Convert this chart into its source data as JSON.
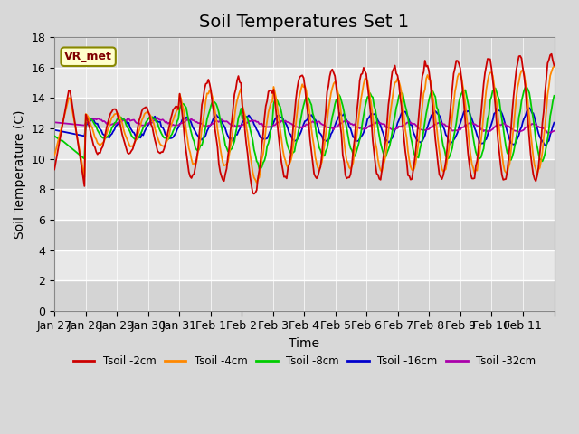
{
  "title": "Soil Temperatures Set 1",
  "xlabel": "Time",
  "ylabel": "Soil Temperature (C)",
  "ylim": [
    0,
    18
  ],
  "yticks": [
    0,
    2,
    4,
    6,
    8,
    10,
    12,
    14,
    16,
    18
  ],
  "x_tick_positions": [
    0,
    1,
    2,
    3,
    4,
    5,
    6,
    7,
    8,
    9,
    10,
    11,
    12,
    13,
    14,
    15,
    16
  ],
  "x_labels": [
    "Jan 27",
    "Jan 28",
    "Jan 29",
    "Jan 30",
    "Jan 31",
    "Feb 1",
    "Feb 2",
    "Feb 3",
    "Feb 4",
    "Feb 5",
    "Feb 6",
    "Feb 7",
    "Feb 8",
    "Feb 9",
    "Feb 10",
    "Feb 11",
    ""
  ],
  "colors": {
    "Tsoil -2cm": "#cc0000",
    "Tsoil -4cm": "#ff8800",
    "Tsoil -8cm": "#00cc00",
    "Tsoil -16cm": "#0000cc",
    "Tsoil -32cm": "#aa00aa"
  },
  "legend_label": "VR_met",
  "fig_bg_color": "#d8d8d8",
  "plot_bg_color": "#e8e8e8",
  "title_fontsize": 14,
  "axis_label_fontsize": 10,
  "tick_fontsize": 9
}
